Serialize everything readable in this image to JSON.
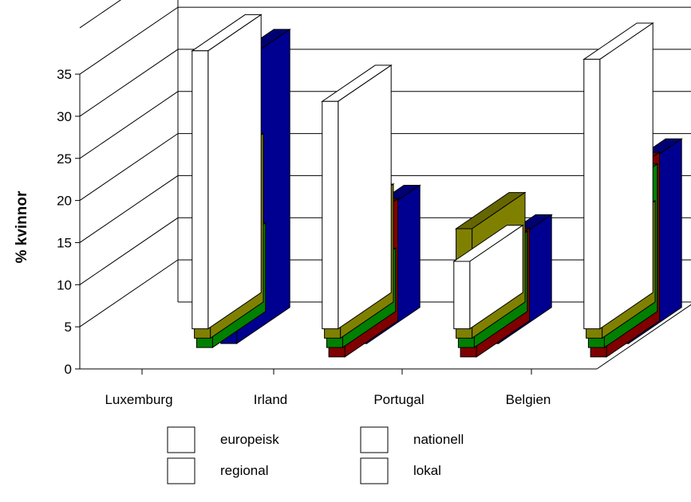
{
  "chart_data": {
    "type": "bar",
    "title": "",
    "xlabel": "",
    "ylabel": "% kvinnor",
    "ylim": [
      0,
      35
    ],
    "y_ticks": [
      "0",
      "5",
      "10",
      "15",
      "20",
      "25",
      "30",
      "35"
    ],
    "grid": true,
    "three_d": true,
    "legend_placement": "bottom",
    "categories": [
      "Luxemburg",
      "Irland",
      "Portugal",
      "Belgien"
    ],
    "series": [
      {
        "name": "europeisk",
        "color": "#ffffff",
        "values": [
          33,
          27,
          8,
          32
        ]
      },
      {
        "name": "nationell",
        "color": "#808000",
        "values": [
          20,
          14,
          13,
          12
        ]
      },
      {
        "name": "regional",
        "color": "#008000",
        "values": [
          10.5,
          7.5,
          9.5,
          17.5
        ]
      },
      {
        "name": "lokal",
        "color": "#800000",
        "values": [
          0,
          14.5,
          11,
          20
        ]
      }
    ],
    "background_series": {
      "color": "#000090",
      "values": [
        33,
        14.5,
        11,
        20
      ]
    }
  }
}
